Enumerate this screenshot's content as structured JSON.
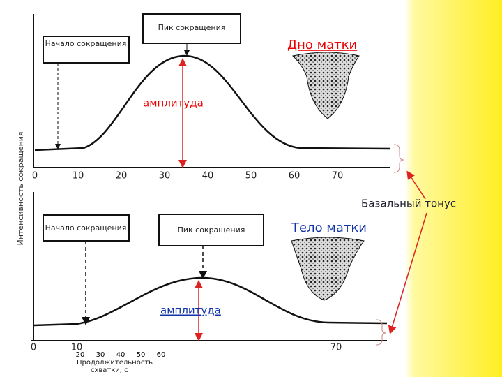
{
  "y_axis_label": "Интенсивность сокращения",
  "top_chart": {
    "onset_box": "Начало сокращения",
    "peak_box": "Пик сокращения",
    "xticks": [
      0,
      10,
      20,
      30,
      40,
      50,
      60,
      70
    ],
    "region_label": "Дно матки",
    "amplitude_label": "амплитуда"
  },
  "basal_tone_label": "Базальный тонус",
  "bottom_chart": {
    "onset_box": "Начало сокращения",
    "peak_box": "Пик сокращения",
    "xticks": [
      0,
      10,
      70
    ],
    "minor_xticks": [
      20,
      30,
      40,
      50,
      60
    ],
    "x_label_line1": "Продолжительность",
    "x_label_line2": "схватки, с",
    "region_label": "Тело матки",
    "amplitude_label": "амплитуда"
  }
}
